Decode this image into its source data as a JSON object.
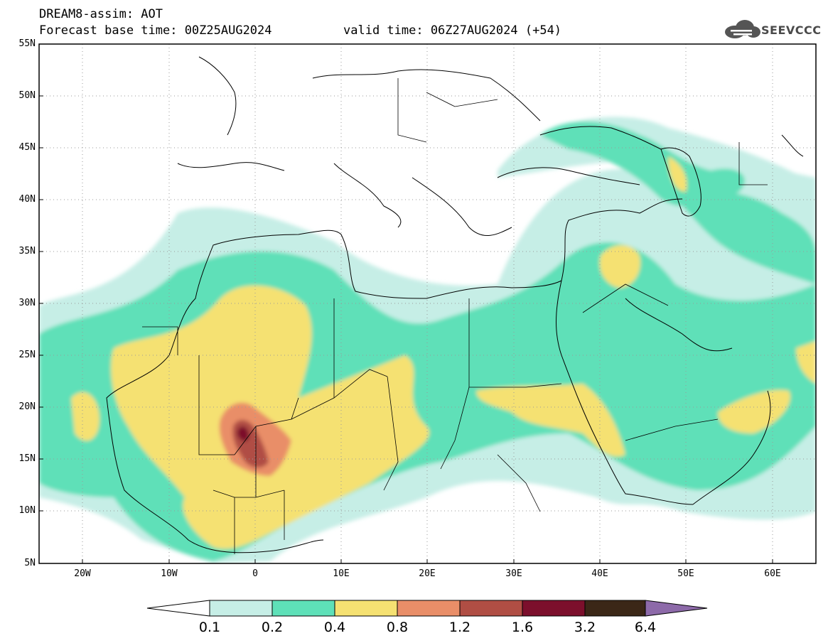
{
  "header": {
    "title_line1": "DREAM8-assim: AOT",
    "forecast_label": "Forecast base time: 00Z25AUG2024",
    "valid_label": "valid time: 06Z27AUG2024 (+54)"
  },
  "logo": {
    "text": "SEEVCCC",
    "icon": "cloud-icon"
  },
  "map": {
    "lat_labels": [
      "55N",
      "50N",
      "45N",
      "40N",
      "35N",
      "30N",
      "25N",
      "20N",
      "15N",
      "10N",
      "5N"
    ],
    "lon_labels": [
      "20W",
      "10W",
      "0",
      "10E",
      "20E",
      "30E",
      "40E",
      "50E",
      "60E"
    ],
    "colors": {
      "c1": "#c6eee6",
      "c2": "#5ee0b8",
      "c3": "#f5e172",
      "c4": "#e98e68",
      "c5": "#b04e44",
      "c6": "#7c0f2c",
      "c7": "#3b2717",
      "c8": "#8d6aa9"
    }
  },
  "colorbar": {
    "labels": [
      "0.1",
      "0.2",
      "0.4",
      "0.8",
      "1.2",
      "1.6",
      "3.2",
      "6.4"
    ],
    "colors": [
      "#ffffff",
      "#c6eee6",
      "#5ee0b8",
      "#f5e172",
      "#e98e68",
      "#b04e44",
      "#7c0f2c",
      "#3b2717",
      "#8d6aa9"
    ]
  }
}
